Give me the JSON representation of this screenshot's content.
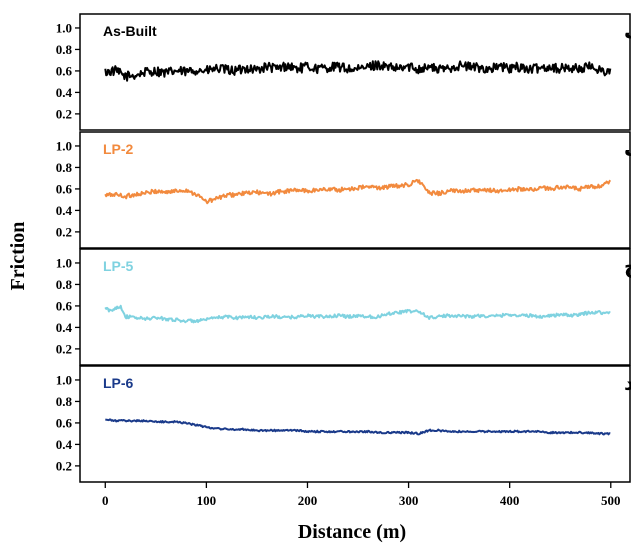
{
  "chart_data": {
    "type": "line",
    "xlabel": "Distance (m)",
    "ylabel": "Friction",
    "xlim": [
      -25,
      520
    ],
    "x_ticks": [
      0,
      100,
      200,
      300,
      400,
      500
    ],
    "x_tick_labels": [
      "0",
      "100",
      "200",
      "300",
      "400",
      "500"
    ],
    "ylim": [
      0.05,
      1.13
    ],
    "y_ticks": [
      0.2,
      0.4,
      0.6,
      0.8,
      1.0
    ],
    "y_tick_labels": [
      "0.2",
      "0.4",
      "0.6",
      "0.8",
      "1.0"
    ],
    "grid": false,
    "legend": "none",
    "panels": [
      {
        "name": "As-Built",
        "letter": "الف",
        "color": "#000000",
        "x": [
          0,
          10,
          20,
          30,
          40,
          50,
          60,
          70,
          80,
          90,
          100,
          110,
          120,
          130,
          140,
          150,
          160,
          170,
          180,
          190,
          200,
          210,
          220,
          230,
          240,
          250,
          260,
          270,
          280,
          290,
          300,
          310,
          320,
          330,
          340,
          350,
          360,
          370,
          380,
          390,
          400,
          410,
          420,
          430,
          440,
          450,
          460,
          470,
          480,
          490,
          500
        ],
        "y": [
          0.59,
          0.6,
          0.55,
          0.56,
          0.59,
          0.6,
          0.58,
          0.6,
          0.59,
          0.61,
          0.6,
          0.62,
          0.61,
          0.6,
          0.63,
          0.61,
          0.64,
          0.62,
          0.65,
          0.62,
          0.64,
          0.62,
          0.63,
          0.64,
          0.62,
          0.61,
          0.64,
          0.66,
          0.63,
          0.62,
          0.64,
          0.62,
          0.64,
          0.61,
          0.63,
          0.65,
          0.64,
          0.63,
          0.62,
          0.64,
          0.62,
          0.64,
          0.61,
          0.63,
          0.64,
          0.62,
          0.63,
          0.62,
          0.64,
          0.61,
          0.58
        ],
        "noise": 0.045
      },
      {
        "name": "LP-2",
        "letter": "ب",
        "color": "#f28a3e",
        "x": [
          0,
          10,
          20,
          30,
          40,
          50,
          60,
          70,
          80,
          90,
          100,
          110,
          120,
          130,
          140,
          150,
          160,
          170,
          180,
          190,
          200,
          210,
          220,
          230,
          240,
          250,
          260,
          270,
          280,
          290,
          300,
          310,
          320,
          330,
          340,
          350,
          360,
          370,
          380,
          390,
          400,
          410,
          420,
          430,
          440,
          450,
          460,
          470,
          480,
          490,
          500
        ],
        "y": [
          0.54,
          0.55,
          0.53,
          0.55,
          0.56,
          0.58,
          0.57,
          0.58,
          0.59,
          0.55,
          0.48,
          0.51,
          0.54,
          0.55,
          0.56,
          0.57,
          0.55,
          0.57,
          0.58,
          0.59,
          0.58,
          0.59,
          0.6,
          0.59,
          0.6,
          0.61,
          0.62,
          0.61,
          0.62,
          0.63,
          0.64,
          0.68,
          0.56,
          0.56,
          0.58,
          0.58,
          0.59,
          0.58,
          0.59,
          0.58,
          0.59,
          0.6,
          0.59,
          0.61,
          0.6,
          0.62,
          0.61,
          0.6,
          0.62,
          0.62,
          0.67
        ],
        "noise": 0.02
      },
      {
        "name": "LP-5",
        "letter": "ج",
        "color": "#7fd2e0",
        "x": [
          0,
          5,
          10,
          15,
          20,
          30,
          40,
          50,
          60,
          70,
          80,
          90,
          100,
          110,
          120,
          130,
          140,
          150,
          160,
          170,
          180,
          190,
          200,
          210,
          220,
          230,
          240,
          250,
          260,
          270,
          280,
          290,
          300,
          310,
          320,
          330,
          340,
          350,
          360,
          370,
          380,
          390,
          400,
          410,
          420,
          430,
          440,
          450,
          460,
          470,
          480,
          490,
          500
        ],
        "y": [
          0.58,
          0.55,
          0.58,
          0.6,
          0.5,
          0.49,
          0.48,
          0.49,
          0.48,
          0.47,
          0.46,
          0.46,
          0.47,
          0.49,
          0.5,
          0.49,
          0.5,
          0.49,
          0.5,
          0.5,
          0.49,
          0.5,
          0.51,
          0.5,
          0.5,
          0.51,
          0.5,
          0.51,
          0.5,
          0.5,
          0.53,
          0.54,
          0.55,
          0.55,
          0.49,
          0.5,
          0.51,
          0.51,
          0.5,
          0.51,
          0.5,
          0.51,
          0.52,
          0.51,
          0.51,
          0.5,
          0.51,
          0.52,
          0.51,
          0.52,
          0.54,
          0.54,
          0.53
        ],
        "noise": 0.015
      },
      {
        "name": "LP-6",
        "letter": "د",
        "color": "#1a3a8a",
        "x": [
          0,
          10,
          20,
          30,
          40,
          50,
          60,
          70,
          80,
          90,
          100,
          110,
          120,
          130,
          140,
          150,
          160,
          170,
          180,
          190,
          200,
          210,
          220,
          230,
          240,
          250,
          260,
          270,
          280,
          290,
          300,
          310,
          320,
          330,
          340,
          350,
          360,
          370,
          380,
          390,
          400,
          410,
          420,
          430,
          440,
          450,
          460,
          470,
          480,
          490,
          500
        ],
        "y": [
          0.63,
          0.62,
          0.62,
          0.62,
          0.62,
          0.61,
          0.61,
          0.61,
          0.6,
          0.58,
          0.56,
          0.55,
          0.54,
          0.54,
          0.54,
          0.53,
          0.53,
          0.53,
          0.53,
          0.53,
          0.52,
          0.52,
          0.52,
          0.52,
          0.52,
          0.52,
          0.52,
          0.51,
          0.51,
          0.51,
          0.51,
          0.5,
          0.53,
          0.53,
          0.52,
          0.52,
          0.52,
          0.52,
          0.52,
          0.52,
          0.52,
          0.52,
          0.52,
          0.52,
          0.51,
          0.51,
          0.51,
          0.51,
          0.51,
          0.5,
          0.5
        ],
        "noise": 0.008
      }
    ]
  }
}
